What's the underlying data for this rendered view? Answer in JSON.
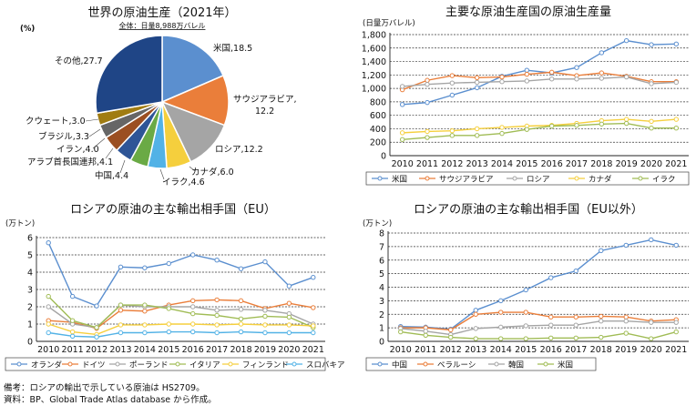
{
  "notes": {
    "line1": "備考：ロシアの輸出で示している原油は HS2709。",
    "line2": "資料：BP、Global Trade Atlas database から作成。"
  },
  "chart_data": [
    {
      "type": "pie",
      "title": "世界の原油生産（2021年）",
      "unit_label": "(%)",
      "subtitle": "全体：日量8,988万バレル",
      "slices": [
        {
          "label": "米国",
          "value": 18.5,
          "color": "#5b8fcf"
        },
        {
          "label": "サウジアラビア",
          "value": 12.2,
          "color": "#ea7e3a"
        },
        {
          "label": "ロシア",
          "value": 12.2,
          "color": "#a5a5a5"
        },
        {
          "label": "カナダ",
          "value": 6.0,
          "color": "#f5cf3d"
        },
        {
          "label": "イラク",
          "value": 4.6,
          "color": "#52b2e6"
        },
        {
          "label": "中国",
          "value": 4.4,
          "color": "#6aaa45"
        },
        {
          "label": "アラブ首長国連邦",
          "value": 4.1,
          "color": "#2e5597"
        },
        {
          "label": "イラン",
          "value": 4.0,
          "color": "#9b4f22"
        },
        {
          "label": "ブラジル",
          "value": 3.3,
          "color": "#666666"
        },
        {
          "label": "クウェート",
          "value": 3.0,
          "color": "#a07c12"
        },
        {
          "label": "その他",
          "value": 27.7,
          "color": "#1f4586"
        }
      ]
    },
    {
      "type": "line",
      "title": "主要な原油生産国の原油生産量",
      "unit_label": "(日量万バレル)",
      "x": [
        "2010",
        "2011",
        "2012",
        "2013",
        "2014",
        "2015",
        "2016",
        "2017",
        "2018",
        "2019",
        "2020",
        "2021"
      ],
      "ylim": [
        0,
        1800
      ],
      "yticks": [
        0,
        200,
        400,
        600,
        800,
        1000,
        1200,
        1400,
        1600,
        1800
      ],
      "series": [
        {
          "name": "米国",
          "color": "#5b8fcf",
          "values": [
            760,
            790,
            900,
            1010,
            1180,
            1270,
            1230,
            1310,
            1530,
            1710,
            1650,
            1660
          ]
        },
        {
          "name": "サウジアラビア",
          "color": "#ea7e3a",
          "values": [
            980,
            1120,
            1190,
            1160,
            1170,
            1210,
            1240,
            1190,
            1230,
            1180,
            1100,
            1100
          ]
        },
        {
          "name": "ロシア",
          "color": "#a5a5a5",
          "values": [
            1030,
            1060,
            1080,
            1090,
            1100,
            1110,
            1140,
            1140,
            1150,
            1170,
            1070,
            1090
          ]
        },
        {
          "name": "カナダ",
          "color": "#f5cf3d",
          "values": [
            340,
            360,
            370,
            400,
            420,
            440,
            450,
            480,
            520,
            540,
            510,
            540
          ]
        },
        {
          "name": "イラク",
          "color": "#a0bc55",
          "values": [
            240,
            270,
            300,
            300,
            330,
            390,
            440,
            450,
            470,
            480,
            410,
            410
          ]
        }
      ]
    },
    {
      "type": "line",
      "title": "ロシアの原油の主な輸出相手国（EU）",
      "unit_label": "(万トン)",
      "x": [
        "2010",
        "2011",
        "2012",
        "2013",
        "2014",
        "2015",
        "2016",
        "2017",
        "2018",
        "2019",
        "2020",
        "2021"
      ],
      "ylim": [
        0,
        6
      ],
      "yticks": [
        0,
        1,
        2,
        3,
        4,
        5,
        6
      ],
      "series": [
        {
          "name": "オランダ",
          "color": "#5b8fcf",
          "values": [
            5.7,
            2.6,
            2.05,
            4.3,
            4.25,
            4.5,
            5.0,
            4.7,
            4.2,
            4.6,
            3.2,
            3.7
          ]
        },
        {
          "name": "ドイツ",
          "color": "#ea7e3a",
          "values": [
            1.2,
            1.1,
            0.75,
            1.8,
            1.75,
            2.1,
            2.35,
            2.4,
            2.35,
            1.9,
            2.2,
            1.95
          ]
        },
        {
          "name": "ポーランド",
          "color": "#a5a5a5",
          "values": [
            2.0,
            1.0,
            0.8,
            2.1,
            2.0,
            2.0,
            2.0,
            1.8,
            1.85,
            1.8,
            1.6,
            1.0
          ]
        },
        {
          "name": "イタリア",
          "color": "#a0bc55",
          "values": [
            2.6,
            1.2,
            0.8,
            2.1,
            2.1,
            1.9,
            1.6,
            1.5,
            1.3,
            1.45,
            1.4,
            0.8
          ]
        },
        {
          "name": "フィンランド",
          "color": "#f5cf3d",
          "values": [
            1.0,
            0.55,
            0.4,
            0.95,
            0.95,
            1.0,
            1.0,
            0.95,
            1.0,
            0.95,
            0.95,
            0.9
          ]
        },
        {
          "name": "スロバキア",
          "color": "#52b2e6",
          "values": [
            0.5,
            0.3,
            0.25,
            0.5,
            0.5,
            0.55,
            0.55,
            0.5,
            0.55,
            0.5,
            0.5,
            0.5
          ]
        }
      ]
    },
    {
      "type": "line",
      "title": "ロシアの原油の主な輸出相手国（EU以外）",
      "unit_label": "(万トン)",
      "x": [
        "2010",
        "2011",
        "2012",
        "2013",
        "2014",
        "2015",
        "2016",
        "2017",
        "2018",
        "2019",
        "2020",
        "2021"
      ],
      "ylim": [
        0,
        8
      ],
      "yticks": [
        0,
        1,
        2,
        3,
        4,
        5,
        6,
        7,
        8
      ],
      "series": [
        {
          "name": "中国",
          "color": "#5b8fcf",
          "values": [
            1.1,
            1.05,
            0.9,
            2.3,
            3.0,
            3.8,
            4.7,
            5.2,
            6.7,
            7.1,
            7.5,
            7.1
          ]
        },
        {
          "name": "ベラルーシ",
          "color": "#ea7e3a",
          "values": [
            1.0,
            1.0,
            0.85,
            2.0,
            2.15,
            2.15,
            1.8,
            1.8,
            1.85,
            1.8,
            1.5,
            1.6
          ]
        },
        {
          "name": "韓国",
          "color": "#a5a5a5",
          "values": [
            0.95,
            0.75,
            0.5,
            0.95,
            1.05,
            1.15,
            1.2,
            1.2,
            1.5,
            1.5,
            1.4,
            1.4
          ]
        },
        {
          "name": "米国",
          "color": "#a0bc55",
          "values": [
            0.7,
            0.45,
            0.3,
            0.2,
            0.2,
            0.2,
            0.25,
            0.25,
            0.3,
            0.6,
            0.2,
            0.7
          ]
        }
      ]
    }
  ]
}
